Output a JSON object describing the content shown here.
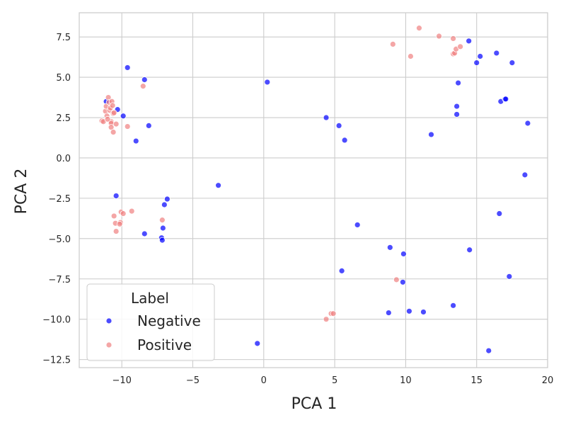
{
  "chart_data": {
    "type": "scatter",
    "title": "",
    "xlabel": "PCA 1",
    "ylabel": "PCA 2",
    "xlim": [
      -13,
      20
    ],
    "ylim": [
      -13,
      9
    ],
    "x_ticks": [
      -10,
      -5,
      0,
      5,
      10,
      15,
      20
    ],
    "x_tick_labels": [
      "−10",
      "−5",
      "0",
      "5",
      "10",
      "15",
      "20"
    ],
    "y_ticks": [
      -12.5,
      -10,
      -7.5,
      -5,
      -2.5,
      0,
      2.5,
      5,
      7.5
    ],
    "y_tick_labels": [
      "−12.5",
      "−10.0",
      "−7.5",
      "−5.0",
      "−2.5",
      "0.0",
      "2.5",
      "5.0",
      "7.5"
    ],
    "grid": true,
    "legend": {
      "title": "Label",
      "position": "lower-left"
    },
    "series": [
      {
        "name": "Negative",
        "color": "#0000ff",
        "points": [
          [
            -11.1,
            3.5
          ],
          [
            -10.3,
            3.0
          ],
          [
            -9.9,
            2.6
          ],
          [
            -9.6,
            5.6
          ],
          [
            -8.4,
            4.85
          ],
          [
            -8.1,
            2.0
          ],
          [
            -9.0,
            1.05
          ],
          [
            -10.4,
            -2.35
          ],
          [
            -6.8,
            -2.55
          ],
          [
            -7.0,
            -2.9
          ],
          [
            -8.4,
            -4.7
          ],
          [
            -7.1,
            -4.35
          ],
          [
            -7.2,
            -4.95
          ],
          [
            -7.15,
            -5.1
          ],
          [
            -3.2,
            -1.7
          ],
          [
            0.25,
            4.7
          ],
          [
            4.4,
            2.5
          ],
          [
            5.3,
            2.0
          ],
          [
            5.7,
            1.1
          ],
          [
            6.6,
            -4.15
          ],
          [
            5.5,
            -7.0
          ],
          [
            8.9,
            -5.55
          ],
          [
            9.85,
            -5.95
          ],
          [
            9.8,
            -7.7
          ],
          [
            8.8,
            -9.6
          ],
          [
            10.25,
            -9.5
          ],
          [
            11.25,
            -9.55
          ],
          [
            -0.45,
            -11.5
          ],
          [
            11.8,
            1.45
          ],
          [
            13.6,
            3.2
          ],
          [
            13.6,
            2.7
          ],
          [
            13.7,
            4.65
          ],
          [
            14.45,
            7.25
          ],
          [
            15.0,
            5.9
          ],
          [
            15.25,
            6.3
          ],
          [
            16.4,
            6.5
          ],
          [
            17.5,
            5.9
          ],
          [
            16.7,
            3.5
          ],
          [
            17.0,
            3.65
          ],
          [
            17.05,
            3.65
          ],
          [
            18.6,
            2.15
          ],
          [
            18.4,
            -1.05
          ],
          [
            16.6,
            -3.45
          ],
          [
            14.5,
            -5.7
          ],
          [
            17.3,
            -7.35
          ],
          [
            13.35,
            -9.15
          ],
          [
            15.85,
            -11.95
          ]
        ]
      },
      {
        "name": "Positive",
        "color": "#f08080",
        "points": [
          [
            -11.4,
            2.3
          ],
          [
            -11.3,
            2.25
          ],
          [
            -11.15,
            2.9
          ],
          [
            -11.1,
            3.2
          ],
          [
            -11.05,
            2.6
          ],
          [
            -10.95,
            3.75
          ],
          [
            -10.9,
            3.45
          ],
          [
            -10.85,
            2.95
          ],
          [
            -10.8,
            3.1
          ],
          [
            -10.75,
            2.25
          ],
          [
            -10.7,
            3.5
          ],
          [
            -10.65,
            3.25
          ],
          [
            -10.6,
            2.75
          ],
          [
            -10.55,
            2.8
          ],
          [
            -11.0,
            2.4
          ],
          [
            -10.75,
            2.15
          ],
          [
            -10.75,
            1.9
          ],
          [
            -10.6,
            1.6
          ],
          [
            -10.4,
            2.1
          ],
          [
            -9.6,
            1.95
          ],
          [
            -8.5,
            4.45
          ],
          [
            -10.55,
            -3.6
          ],
          [
            -10.05,
            -3.35
          ],
          [
            -9.9,
            -3.45
          ],
          [
            -9.3,
            -3.3
          ],
          [
            -10.45,
            -4.05
          ],
          [
            -10.1,
            -4.0
          ],
          [
            -10.15,
            -4.1
          ],
          [
            -10.4,
            -4.55
          ],
          [
            -7.15,
            -3.85
          ],
          [
            4.4,
            -10.0
          ],
          [
            4.75,
            -9.65
          ],
          [
            4.9,
            -9.65
          ],
          [
            9.35,
            -7.55
          ],
          [
            9.1,
            7.05
          ],
          [
            10.35,
            6.3
          ],
          [
            10.95,
            8.05
          ],
          [
            12.35,
            7.55
          ],
          [
            13.35,
            7.4
          ],
          [
            13.35,
            6.45
          ],
          [
            13.45,
            6.5
          ],
          [
            13.55,
            6.75
          ],
          [
            13.85,
            6.9
          ]
        ]
      }
    ]
  }
}
